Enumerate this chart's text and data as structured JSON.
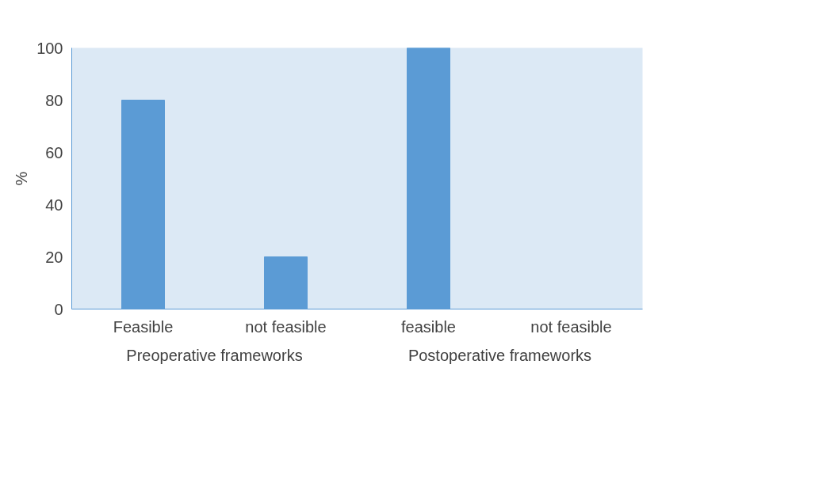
{
  "chart_data": {
    "type": "bar",
    "ylabel": "%",
    "categories": [
      "Feasible",
      "not feasible",
      "feasible",
      "not feasible"
    ],
    "series": [
      {
        "color": "#5b9bd5",
        "values": [
          80,
          20,
          100,
          0
        ]
      }
    ],
    "ylim": [
      0,
      100
    ],
    "yticks": [
      0,
      20,
      40,
      60,
      80,
      100
    ],
    "grid": false,
    "annotations": [
      "Preoperative frameworks",
      "Postoperative frameworks"
    ]
  }
}
